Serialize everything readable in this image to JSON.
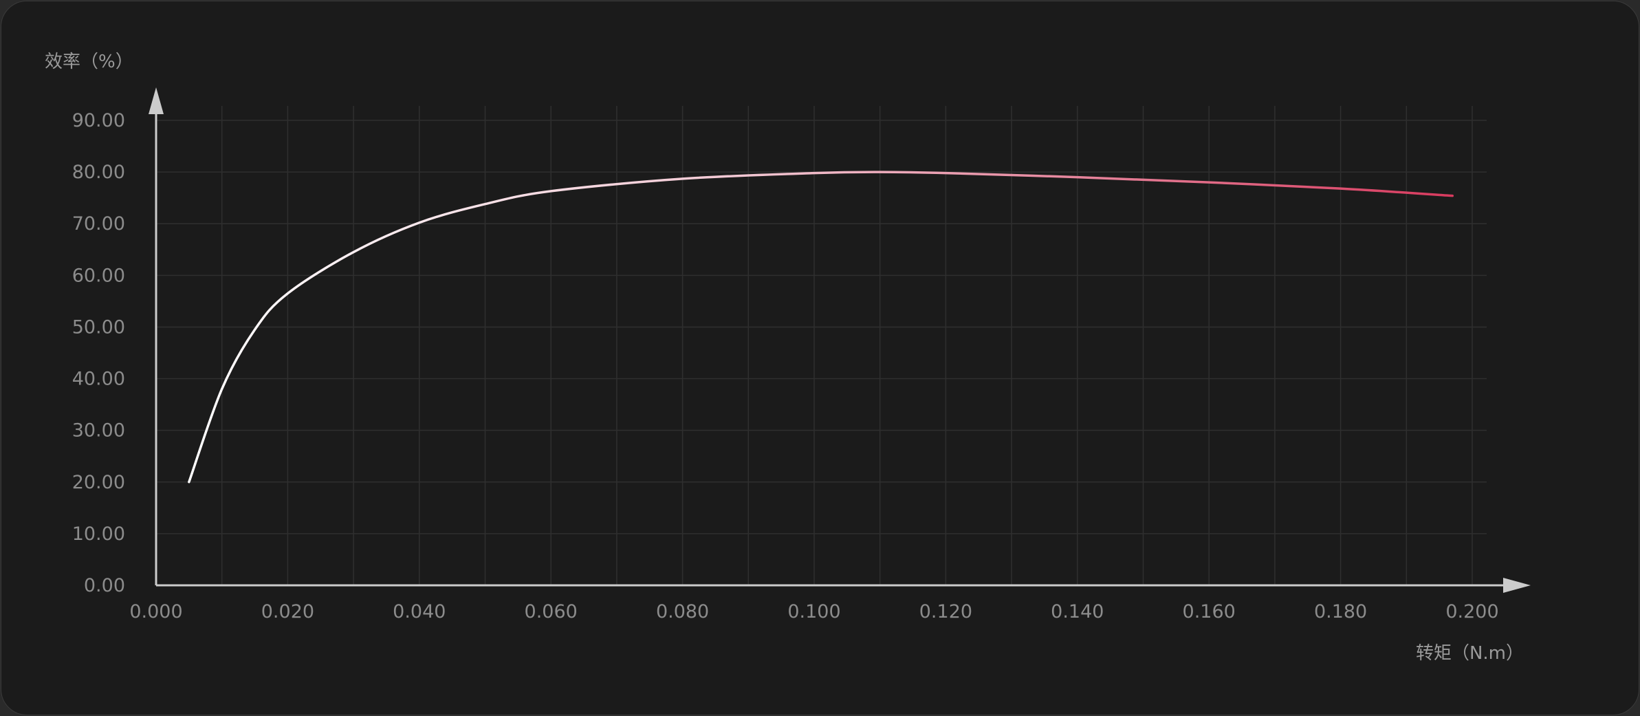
{
  "chart_data": {
    "type": "line",
    "ylabel": "效率（%）",
    "xlabel": "转矩（N.m）",
    "xlim": [
      0,
      0.2
    ],
    "ylim": [
      0,
      90
    ],
    "grid": true,
    "x_ticks": [
      "0.000",
      "0.020",
      "0.040",
      "0.060",
      "0.080",
      "0.100",
      "0.120",
      "0.140",
      "0.160",
      "0.180",
      "0.200"
    ],
    "y_ticks": [
      "0.00",
      "10.00",
      "20.00",
      "30.00",
      "40.00",
      "50.00",
      "60.00",
      "70.00",
      "80.00",
      "90.00"
    ],
    "series": [
      {
        "x": [
          0.005,
          0.01,
          0.015,
          0.02,
          0.03,
          0.04,
          0.05,
          0.06,
          0.08,
          0.1,
          0.11,
          0.12,
          0.14,
          0.16,
          0.18,
          0.197
        ],
        "y": [
          20.0,
          38.0,
          49.5,
          56.5,
          64.5,
          70.2,
          73.8,
          76.3,
          78.7,
          79.8,
          80.0,
          79.8,
          79.0,
          78.0,
          76.8,
          75.4
        ]
      }
    ],
    "colors": {
      "background": "#1b1b1b",
      "grid": "#2f2f2f",
      "axis": "#cccccc",
      "tick_label": "#8c8c8c",
      "line_start": "#ffffff",
      "line_mid": "#f2c6d2",
      "line_end": "#d83a5e"
    }
  }
}
